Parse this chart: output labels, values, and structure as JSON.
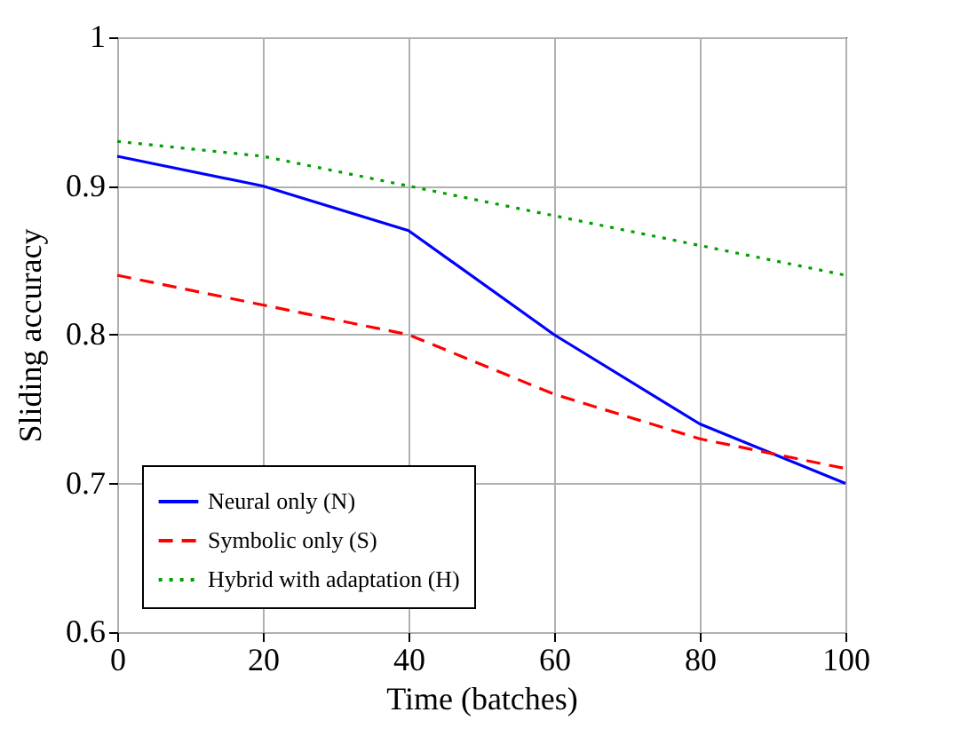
{
  "chart_data": {
    "type": "line",
    "xlabel": "Time (batches)",
    "ylabel": "Sliding accuracy",
    "x": [
      0,
      20,
      40,
      60,
      80,
      100
    ],
    "series": [
      {
        "name": "Neural only (N)",
        "color": "#0000ff",
        "line_style": "solid",
        "values": [
          0.92,
          0.9,
          0.87,
          0.8,
          0.74,
          0.7
        ]
      },
      {
        "name": "Symbolic only (S)",
        "color": "#ff0000",
        "line_style": "dashed",
        "values": [
          0.84,
          0.82,
          0.8,
          0.76,
          0.73,
          0.71
        ]
      },
      {
        "name": "Hybrid with adaptation (H)",
        "color": "#00a000",
        "line_style": "dotted",
        "values": [
          0.93,
          0.92,
          0.9,
          0.88,
          0.86,
          0.84
        ]
      }
    ],
    "xlim": [
      0,
      100
    ],
    "xticks": [
      0,
      20,
      40,
      60,
      80,
      100
    ],
    "ylim": [
      0.6,
      1
    ],
    "yticks": [
      0.6,
      0.7,
      0.8,
      0.9,
      1
    ],
    "grid": true,
    "legend": "bottom left",
    "marker": "none"
  }
}
